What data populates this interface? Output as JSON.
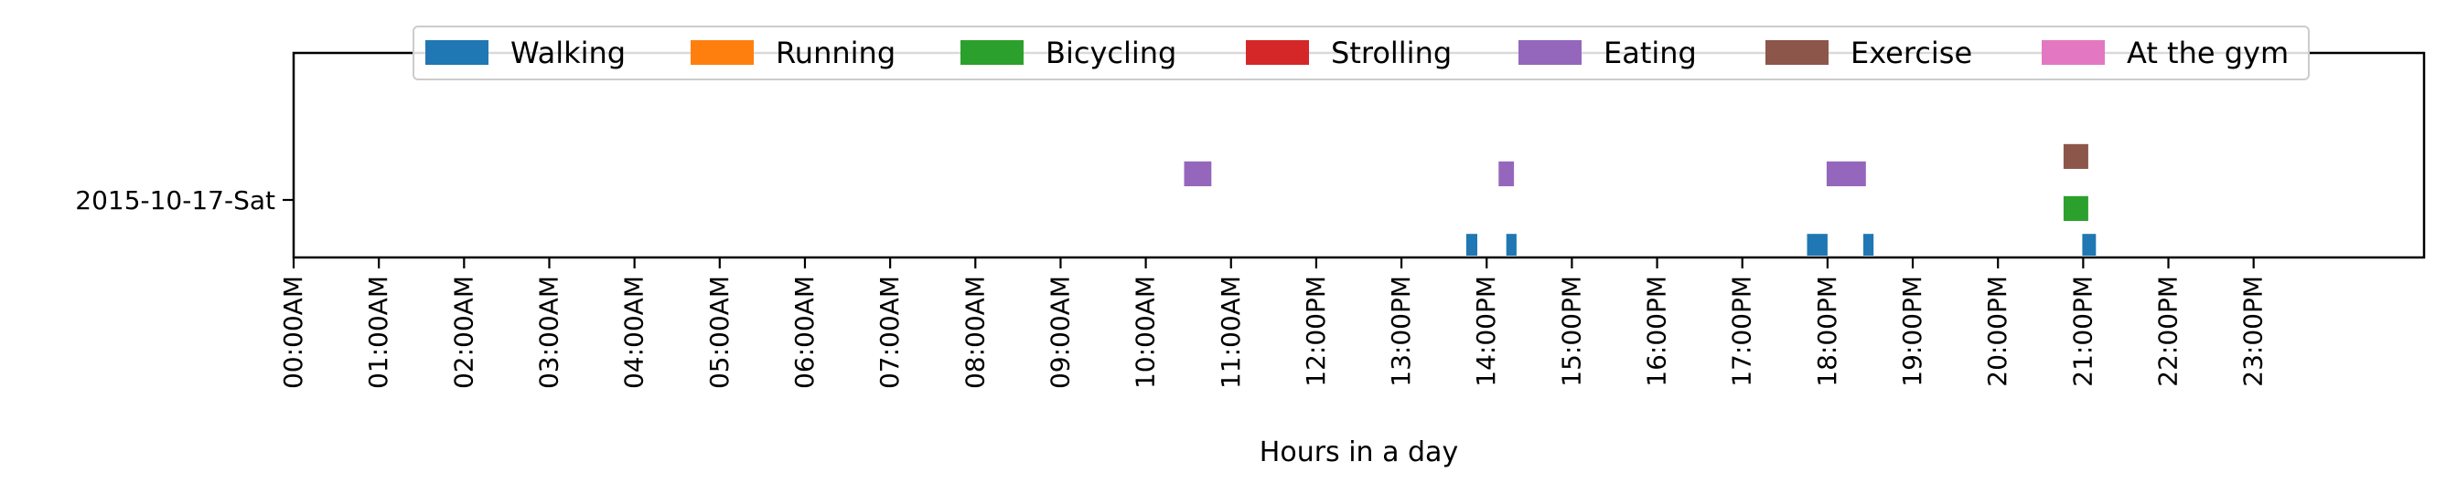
{
  "chart_data": {
    "type": "timeline",
    "title": "",
    "xlabel": "Hours in a day",
    "ylabel": "",
    "xlim": [
      0,
      24
    ],
    "grid": false,
    "legend_placement": "top-center",
    "categories": [
      "2015-10-17-Sat"
    ],
    "x_ticks": [
      "00:00AM",
      "01:00AM",
      "02:00AM",
      "03:00AM",
      "04:00AM",
      "05:00AM",
      "06:00AM",
      "07:00AM",
      "08:00AM",
      "09:00AM",
      "10:00AM",
      "11:00AM",
      "12:00PM",
      "13:00PM",
      "14:00PM",
      "15:00PM",
      "16:00PM",
      "17:00PM",
      "18:00PM",
      "19:00PM",
      "20:00PM",
      "21:00PM",
      "22:00PM",
      "23:00PM"
    ],
    "series": [
      {
        "name": "Walking",
        "color": "#1f77b4",
        "row": 0,
        "intervals": [
          [
            13.76,
            13.89
          ],
          [
            14.23,
            14.35
          ],
          [
            17.76,
            18.0
          ],
          [
            18.42,
            18.54
          ],
          [
            20.99,
            21.15
          ]
        ]
      },
      {
        "name": "Running",
        "color": "#ff7f0e",
        "row": 1,
        "intervals": []
      },
      {
        "name": "Bicycling",
        "color": "#2ca02c",
        "row": 2,
        "intervals": [
          [
            20.77,
            21.06
          ]
        ]
      },
      {
        "name": "Strolling",
        "color": "#d62728",
        "row": 3,
        "intervals": []
      },
      {
        "name": "Eating",
        "color": "#9467bd",
        "row": 4,
        "intervals": [
          [
            10.45,
            10.77
          ],
          [
            14.14,
            14.32
          ],
          [
            17.99,
            18.45
          ]
        ]
      },
      {
        "name": "Exercise",
        "color": "#8c564b",
        "row": 5,
        "intervals": [
          [
            20.77,
            21.06
          ]
        ]
      },
      {
        "name": "At the gym",
        "color": "#e377c2",
        "row": 6,
        "intervals": []
      }
    ]
  }
}
